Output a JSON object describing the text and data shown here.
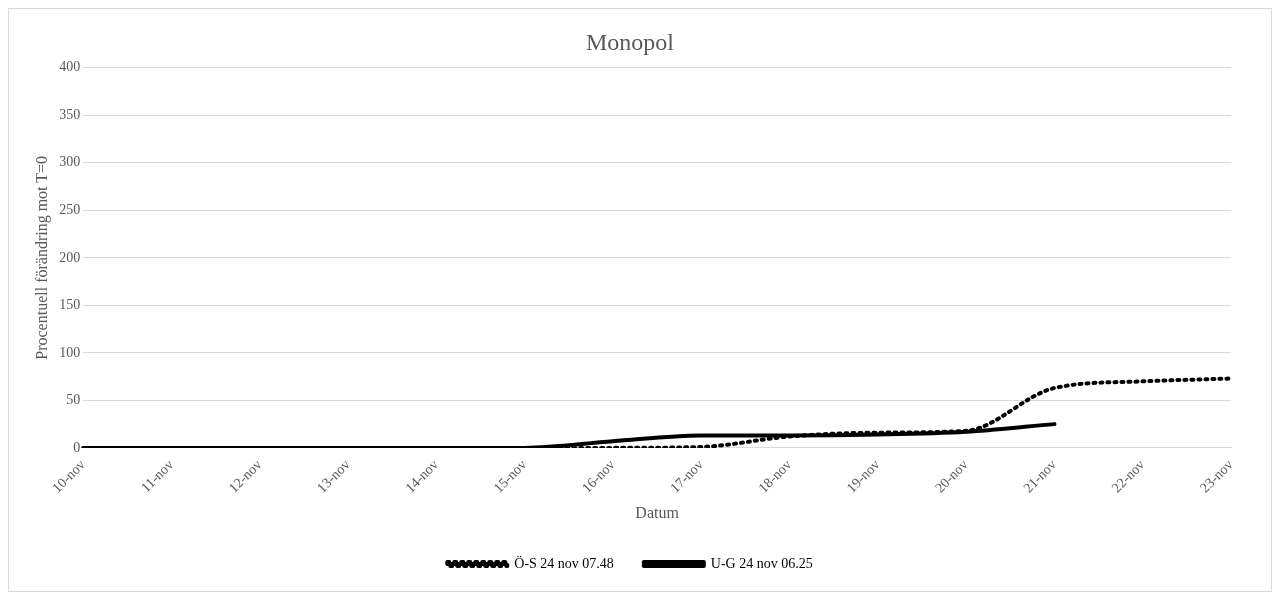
{
  "chart_data": {
    "type": "line",
    "title": "Monopol",
    "xlabel": "Datum",
    "ylabel": "Procentuell förändring mot T=0",
    "categories": [
      "10-nov",
      "11-nov",
      "12-nov",
      "13-nov",
      "14-nov",
      "15-nov",
      "16-nov",
      "17-nov",
      "18-nov",
      "19-nov",
      "20-nov",
      "21-nov",
      "22-nov",
      "23-nov"
    ],
    "series": [
      {
        "name": "Ö-S 24 nov 07.48",
        "color": "#000000",
        "line_style": "dotted",
        "values": [
          0,
          0,
          0,
          0,
          0,
          0,
          0,
          1,
          12,
          16,
          18,
          63,
          70,
          73
        ]
      },
      {
        "name": "U-G 24 nov 06.25",
        "color": "#000000",
        "line_style": "solid",
        "values": [
          0,
          0,
          0,
          0,
          0,
          0,
          7,
          13,
          13,
          14,
          17,
          25,
          null,
          null
        ]
      }
    ],
    "ylim": [
      0,
      400
    ],
    "yticks": [
      0,
      50,
      100,
      150,
      200,
      250,
      300,
      350,
      400
    ],
    "grid": "y",
    "legend": "bottom",
    "marker": "none"
  }
}
